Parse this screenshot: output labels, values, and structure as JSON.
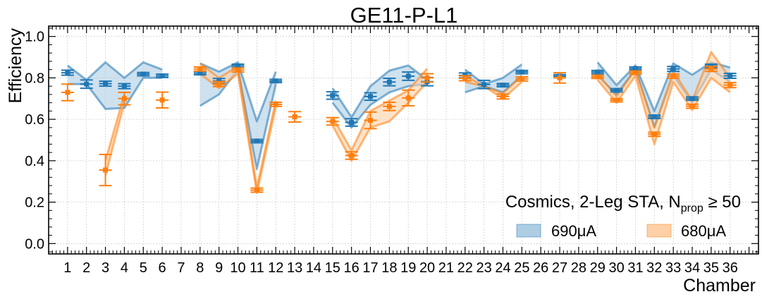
{
  "chart_data": {
    "type": "scatter",
    "title": "GE11-P-L1",
    "xlabel": "Chamber",
    "ylabel": "Efficiency",
    "xlim": [
      0,
      37.5
    ],
    "ylim": [
      -0.05,
      1.05
    ],
    "xticks": [
      1,
      2,
      3,
      4,
      5,
      6,
      7,
      8,
      9,
      10,
      11,
      12,
      13,
      14,
      15,
      16,
      17,
      18,
      19,
      20,
      21,
      22,
      23,
      24,
      25,
      26,
      27,
      28,
      29,
      30,
      31,
      32,
      33,
      34,
      35,
      36
    ],
    "yticks": [
      0.0,
      0.2,
      0.4,
      0.6,
      0.8,
      1.0
    ],
    "ytick_labels": [
      "0.0",
      "0.2",
      "0.4",
      "0.6",
      "0.8",
      "1.0"
    ],
    "grid": true,
    "legend": {
      "placement": "bottom-right",
      "title_main": "Cosmics, 2-Leg STA, N",
      "title_sub": "prop",
      "title_tail": " ≥ 50"
    },
    "colors": {
      "series_690": "#1f77b4",
      "series_680": "#ff7f0e",
      "band_690_fill": "#aecde3",
      "band_680_fill": "#fdd0a8"
    },
    "series": [
      {
        "name": "690μA",
        "color": "#1f77b4",
        "points": [
          {
            "x": 1,
            "y": 0.825,
            "err": 0.012
          },
          {
            "x": 2,
            "y": 0.77,
            "err": 0.02
          },
          {
            "x": 3,
            "y": 0.772,
            "err": 0.012
          },
          {
            "x": 4,
            "y": 0.76,
            "err": 0.012
          },
          {
            "x": 5,
            "y": 0.818,
            "err": 0.008
          },
          {
            "x": 6,
            "y": 0.81,
            "err": 0.008
          },
          {
            "x": 8,
            "y": 0.823,
            "err": 0.008
          },
          {
            "x": 9,
            "y": 0.785,
            "err": 0.012
          },
          {
            "x": 10,
            "y": 0.858,
            "err": 0.008
          },
          {
            "x": 11,
            "y": 0.495,
            "err": 0.008
          },
          {
            "x": 12,
            "y": 0.785,
            "err": 0.008
          },
          {
            "x": 15,
            "y": 0.715,
            "err": 0.018
          },
          {
            "x": 16,
            "y": 0.585,
            "err": 0.018
          },
          {
            "x": 17,
            "y": 0.71,
            "err": 0.018
          },
          {
            "x": 18,
            "y": 0.78,
            "err": 0.018
          },
          {
            "x": 19,
            "y": 0.808,
            "err": 0.02
          },
          {
            "x": 20,
            "y": 0.782,
            "err": 0.02
          },
          {
            "x": 22,
            "y": 0.812,
            "err": 0.012
          },
          {
            "x": 23,
            "y": 0.768,
            "err": 0.02
          },
          {
            "x": 24,
            "y": 0.765,
            "err": 0.008
          },
          {
            "x": 25,
            "y": 0.828,
            "err": 0.008
          },
          {
            "x": 27,
            "y": 0.808,
            "err": 0.008
          },
          {
            "x": 29,
            "y": 0.828,
            "err": 0.008
          },
          {
            "x": 30,
            "y": 0.74,
            "err": 0.008
          },
          {
            "x": 31,
            "y": 0.845,
            "err": 0.008
          },
          {
            "x": 32,
            "y": 0.612,
            "err": 0.008
          },
          {
            "x": 33,
            "y": 0.843,
            "err": 0.012
          },
          {
            "x": 34,
            "y": 0.7,
            "err": 0.008
          },
          {
            "x": 35,
            "y": 0.858,
            "err": 0.008
          },
          {
            "x": 36,
            "y": 0.81,
            "err": 0.012
          }
        ],
        "band": [
          {
            "x": [
              1,
              2,
              3,
              4,
              5,
              6
            ],
            "upper": [
              0.86,
              0.79,
              0.875,
              0.8,
              0.875,
              0.84
            ],
            "lower": [
              0.77,
              0.77,
              0.65,
              0.655,
              0.8,
              0.8
            ]
          },
          {
            "x": [
              8,
              9,
              10,
              11,
              12
            ],
            "upper": [
              0.87,
              0.83,
              0.875,
              0.59,
              0.83
            ],
            "lower": [
              0.665,
              0.72,
              0.84,
              0.36,
              0.77
            ]
          },
          {
            "x": [
              15,
              16,
              17,
              18,
              19,
              20
            ],
            "upper": [
              0.75,
              0.61,
              0.76,
              0.835,
              0.86,
              0.79
            ],
            "lower": [
              0.68,
              0.56,
              0.67,
              0.73,
              0.76,
              0.77
            ]
          },
          {
            "x": [
              22,
              23,
              24,
              25
            ],
            "upper": [
              0.84,
              0.77,
              0.8,
              0.865
            ],
            "lower": [
              0.73,
              0.76,
              0.73,
              0.81
            ]
          },
          {
            "x": [
              29,
              30,
              31,
              32,
              33,
              34,
              35,
              36
            ],
            "upper": [
              0.875,
              0.765,
              0.86,
              0.64,
              0.87,
              0.815,
              0.875,
              0.85
            ],
            "lower": [
              0.81,
              0.72,
              0.84,
              0.56,
              0.81,
              0.68,
              0.84,
              0.78
            ]
          }
        ]
      },
      {
        "name": "680μA",
        "color": "#ff7f0e",
        "points": [
          {
            "x": 1,
            "y": 0.73,
            "err": 0.04
          },
          {
            "x": 3,
            "y": 0.355,
            "err": 0.075
          },
          {
            "x": 4,
            "y": 0.7,
            "err": 0.03
          },
          {
            "x": 6,
            "y": 0.693,
            "err": 0.038
          },
          {
            "x": 8,
            "y": 0.843,
            "err": 0.01
          },
          {
            "x": 9,
            "y": 0.77,
            "err": 0.012
          },
          {
            "x": 10,
            "y": 0.838,
            "err": 0.01
          },
          {
            "x": 11,
            "y": 0.258,
            "err": 0.01
          },
          {
            "x": 12,
            "y": 0.672,
            "err": 0.01
          },
          {
            "x": 13,
            "y": 0.612,
            "err": 0.025
          },
          {
            "x": 15,
            "y": 0.59,
            "err": 0.018
          },
          {
            "x": 16,
            "y": 0.425,
            "err": 0.018
          },
          {
            "x": 17,
            "y": 0.595,
            "err": 0.04
          },
          {
            "x": 18,
            "y": 0.662,
            "err": 0.02
          },
          {
            "x": 19,
            "y": 0.703,
            "err": 0.038
          },
          {
            "x": 20,
            "y": 0.8,
            "err": 0.02
          },
          {
            "x": 22,
            "y": 0.798,
            "err": 0.012
          },
          {
            "x": 24,
            "y": 0.71,
            "err": 0.012
          },
          {
            "x": 25,
            "y": 0.795,
            "err": 0.01
          },
          {
            "x": 27,
            "y": 0.8,
            "err": 0.025
          },
          {
            "x": 29,
            "y": 0.805,
            "err": 0.008
          },
          {
            "x": 30,
            "y": 0.692,
            "err": 0.008
          },
          {
            "x": 31,
            "y": 0.825,
            "err": 0.008
          },
          {
            "x": 32,
            "y": 0.528,
            "err": 0.01
          },
          {
            "x": 33,
            "y": 0.808,
            "err": 0.01
          },
          {
            "x": 34,
            "y": 0.663,
            "err": 0.01
          },
          {
            "x": 35,
            "y": 0.843,
            "err": 0.012
          },
          {
            "x": 36,
            "y": 0.765,
            "err": 0.012
          }
        ],
        "band": [
          {
            "x": [
              3,
              4
            ],
            "upper": [
              0.4,
              0.72
            ],
            "lower": [
              0.33,
              0.68
            ]
          },
          {
            "x": [
              8,
              9,
              10,
              11,
              12
            ],
            "upper": [
              0.87,
              0.8,
              0.855,
              0.27,
              0.69
            ],
            "lower": [
              0.82,
              0.75,
              0.82,
              0.245,
              0.66
            ]
          },
          {
            "x": [
              15,
              16,
              17,
              18,
              19,
              20
            ],
            "upper": [
              0.61,
              0.45,
              0.64,
              0.69,
              0.74,
              0.845
            ],
            "lower": [
              0.57,
              0.4,
              0.56,
              0.59,
              0.68,
              0.78
            ]
          },
          {
            "x": [
              22,
              23,
              24,
              25
            ],
            "upper": [
              0.81,
              0.76,
              0.725,
              0.81
            ],
            "lower": [
              0.78,
              0.76,
              0.7,
              0.78
            ]
          },
          {
            "x": [
              29,
              30,
              31,
              32,
              33,
              34,
              35,
              36
            ],
            "upper": [
              0.82,
              0.71,
              0.84,
              0.56,
              0.83,
              0.69,
              0.925,
              0.8
            ],
            "lower": [
              0.79,
              0.68,
              0.81,
              0.48,
              0.78,
              0.645,
              0.8,
              0.73
            ]
          }
        ]
      }
    ]
  }
}
